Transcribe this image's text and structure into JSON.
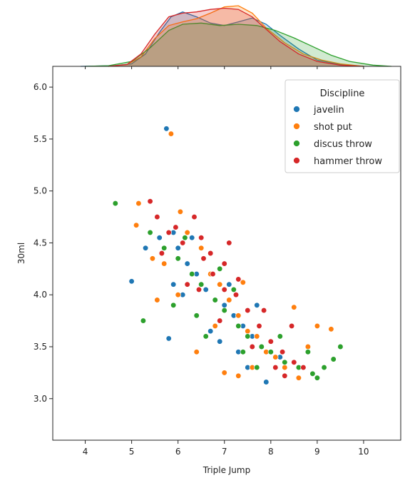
{
  "chart_data": {
    "type": "scatter",
    "xlabel": "Triple Jump",
    "ylabel": "30ml",
    "xlim": [
      3.3,
      10.8
    ],
    "ylim": [
      2.6,
      6.2
    ],
    "x_ticks": [
      4,
      5,
      6,
      7,
      8,
      9,
      10
    ],
    "y_ticks": [
      3.0,
      3.5,
      4.0,
      4.5,
      5.0,
      5.5,
      6.0
    ],
    "marginal_x": "kde",
    "grid": false,
    "legend": {
      "title": "Discipline",
      "placement": "top-right"
    },
    "series": [
      {
        "name": "javelin",
        "color": "#1f77b4",
        "points": [
          [
            5.75,
            5.6
          ],
          [
            5.0,
            4.13
          ],
          [
            5.6,
            4.55
          ],
          [
            5.9,
            4.6
          ],
          [
            6.0,
            4.45
          ],
          [
            6.2,
            4.3
          ],
          [
            6.4,
            4.2
          ],
          [
            6.6,
            4.05
          ],
          [
            6.8,
            3.95
          ],
          [
            7.0,
            3.9
          ],
          [
            7.2,
            3.8
          ],
          [
            7.4,
            3.7
          ],
          [
            7.6,
            3.6
          ],
          [
            7.8,
            3.5
          ],
          [
            8.0,
            3.45
          ],
          [
            8.2,
            3.4
          ],
          [
            8.5,
            3.35
          ],
          [
            7.9,
            3.16
          ],
          [
            7.5,
            3.3
          ],
          [
            6.1,
            4.0
          ],
          [
            5.8,
            3.58
          ],
          [
            5.3,
            4.45
          ],
          [
            6.7,
            3.65
          ],
          [
            7.1,
            4.1
          ],
          [
            8.6,
            3.3
          ],
          [
            6.3,
            4.55
          ],
          [
            5.9,
            4.1
          ],
          [
            7.7,
            3.9
          ],
          [
            6.9,
            3.55
          ],
          [
            7.3,
            3.45
          ]
        ]
      },
      {
        "name": "shot put",
        "color": "#ff7f0e",
        "points": [
          [
            5.85,
            5.55
          ],
          [
            5.15,
            4.88
          ],
          [
            5.1,
            4.67
          ],
          [
            5.45,
            4.35
          ],
          [
            5.7,
            4.3
          ],
          [
            6.05,
            4.8
          ],
          [
            6.2,
            4.6
          ],
          [
            6.5,
            4.45
          ],
          [
            6.7,
            4.2
          ],
          [
            6.9,
            4.1
          ],
          [
            7.1,
            3.95
          ],
          [
            7.3,
            3.8
          ],
          [
            7.5,
            3.65
          ],
          [
            7.7,
            3.6
          ],
          [
            7.9,
            3.45
          ],
          [
            8.1,
            3.4
          ],
          [
            8.3,
            3.3
          ],
          [
            8.6,
            3.2
          ],
          [
            9.0,
            3.7
          ],
          [
            9.3,
            3.67
          ],
          [
            7.0,
            3.25
          ],
          [
            7.3,
            3.22
          ],
          [
            6.4,
            3.45
          ],
          [
            5.55,
            3.95
          ],
          [
            8.5,
            3.88
          ],
          [
            6.0,
            4.0
          ],
          [
            7.6,
            3.3
          ],
          [
            6.8,
            3.7
          ],
          [
            8.8,
            3.5
          ],
          [
            7.4,
            4.12
          ]
        ]
      },
      {
        "name": "discus throw",
        "color": "#2ca02c",
        "points": [
          [
            4.65,
            4.88
          ],
          [
            5.25,
            3.75
          ],
          [
            5.4,
            4.6
          ],
          [
            5.7,
            4.45
          ],
          [
            6.0,
            4.35
          ],
          [
            6.3,
            4.2
          ],
          [
            6.5,
            4.1
          ],
          [
            6.8,
            3.95
          ],
          [
            7.0,
            3.85
          ],
          [
            7.3,
            3.7
          ],
          [
            7.5,
            3.6
          ],
          [
            7.8,
            3.5
          ],
          [
            8.0,
            3.45
          ],
          [
            8.3,
            3.35
          ],
          [
            8.6,
            3.3
          ],
          [
            9.0,
            3.2
          ],
          [
            9.15,
            3.3
          ],
          [
            9.35,
            3.38
          ],
          [
            9.5,
            3.5
          ],
          [
            8.8,
            3.45
          ],
          [
            6.15,
            4.55
          ],
          [
            6.6,
            3.6
          ],
          [
            7.7,
            3.3
          ],
          [
            5.9,
            3.9
          ],
          [
            7.2,
            4.05
          ],
          [
            8.2,
            3.6
          ],
          [
            6.9,
            4.25
          ],
          [
            8.9,
            3.24
          ],
          [
            7.4,
            3.45
          ],
          [
            6.4,
            3.8
          ]
        ]
      },
      {
        "name": "hammer throw",
        "color": "#d62728",
        "points": [
          [
            5.4,
            4.9
          ],
          [
            5.55,
            4.75
          ],
          [
            5.8,
            4.6
          ],
          [
            6.1,
            4.5
          ],
          [
            6.35,
            4.75
          ],
          [
            6.5,
            4.55
          ],
          [
            6.55,
            4.35
          ],
          [
            6.75,
            4.2
          ],
          [
            7.0,
            4.05
          ],
          [
            7.25,
            4.0
          ],
          [
            7.5,
            3.85
          ],
          [
            7.75,
            3.7
          ],
          [
            8.0,
            3.55
          ],
          [
            8.25,
            3.45
          ],
          [
            8.5,
            3.35
          ],
          [
            8.7,
            3.3
          ],
          [
            8.3,
            3.22
          ],
          [
            7.0,
            4.3
          ],
          [
            7.3,
            4.15
          ],
          [
            5.65,
            4.4
          ],
          [
            6.2,
            4.1
          ],
          [
            6.9,
            3.75
          ],
          [
            7.6,
            3.5
          ],
          [
            8.1,
            3.3
          ],
          [
            7.1,
            4.5
          ],
          [
            6.45,
            4.05
          ],
          [
            5.95,
            4.65
          ],
          [
            8.45,
            3.7
          ],
          [
            7.85,
            3.85
          ],
          [
            6.7,
            4.4
          ]
        ]
      }
    ],
    "kde": [
      {
        "name": "javelin",
        "color": "#1f77b4",
        "density": [
          [
            3.9,
            0
          ],
          [
            4.6,
            0.01
          ],
          [
            5.0,
            0.04
          ],
          [
            5.3,
            0.2
          ],
          [
            5.6,
            0.55
          ],
          [
            5.85,
            0.8
          ],
          [
            6.1,
            0.88
          ],
          [
            6.4,
            0.8
          ],
          [
            6.7,
            0.7
          ],
          [
            7.0,
            0.66
          ],
          [
            7.3,
            0.72
          ],
          [
            7.6,
            0.78
          ],
          [
            7.9,
            0.68
          ],
          [
            8.2,
            0.5
          ],
          [
            8.6,
            0.28
          ],
          [
            9.0,
            0.1
          ],
          [
            9.5,
            0.03
          ],
          [
            10.0,
            0
          ]
        ]
      },
      {
        "name": "shot put",
        "color": "#ff7f0e",
        "density": [
          [
            4.5,
            0
          ],
          [
            4.9,
            0.03
          ],
          [
            5.2,
            0.15
          ],
          [
            5.5,
            0.45
          ],
          [
            5.8,
            0.66
          ],
          [
            6.1,
            0.72
          ],
          [
            6.4,
            0.77
          ],
          [
            6.7,
            0.86
          ],
          [
            7.0,
            0.96
          ],
          [
            7.3,
            0.98
          ],
          [
            7.6,
            0.86
          ],
          [
            7.9,
            0.62
          ],
          [
            8.3,
            0.38
          ],
          [
            8.7,
            0.2
          ],
          [
            9.1,
            0.1
          ],
          [
            9.5,
            0.04
          ],
          [
            10.0,
            0
          ]
        ]
      },
      {
        "name": "discus throw",
        "color": "#2ca02c",
        "density": [
          [
            4.0,
            0
          ],
          [
            4.5,
            0.01
          ],
          [
            5.0,
            0.08
          ],
          [
            5.4,
            0.3
          ],
          [
            5.8,
            0.58
          ],
          [
            6.1,
            0.68
          ],
          [
            6.5,
            0.7
          ],
          [
            6.9,
            0.66
          ],
          [
            7.3,
            0.68
          ],
          [
            7.7,
            0.66
          ],
          [
            8.1,
            0.58
          ],
          [
            8.5,
            0.46
          ],
          [
            8.9,
            0.32
          ],
          [
            9.3,
            0.18
          ],
          [
            9.7,
            0.08
          ],
          [
            10.2,
            0.02
          ],
          [
            10.6,
            0
          ]
        ]
      },
      {
        "name": "hammer throw",
        "color": "#d62728",
        "density": [
          [
            4.5,
            0
          ],
          [
            4.9,
            0.03
          ],
          [
            5.2,
            0.2
          ],
          [
            5.5,
            0.52
          ],
          [
            5.8,
            0.8
          ],
          [
            6.1,
            0.86
          ],
          [
            6.4,
            0.88
          ],
          [
            6.7,
            0.92
          ],
          [
            7.0,
            0.94
          ],
          [
            7.3,
            0.92
          ],
          [
            7.6,
            0.8
          ],
          [
            7.9,
            0.6
          ],
          [
            8.2,
            0.4
          ],
          [
            8.6,
            0.2
          ],
          [
            9.0,
            0.08
          ],
          [
            9.5,
            0.02
          ],
          [
            10.0,
            0
          ]
        ]
      }
    ]
  }
}
